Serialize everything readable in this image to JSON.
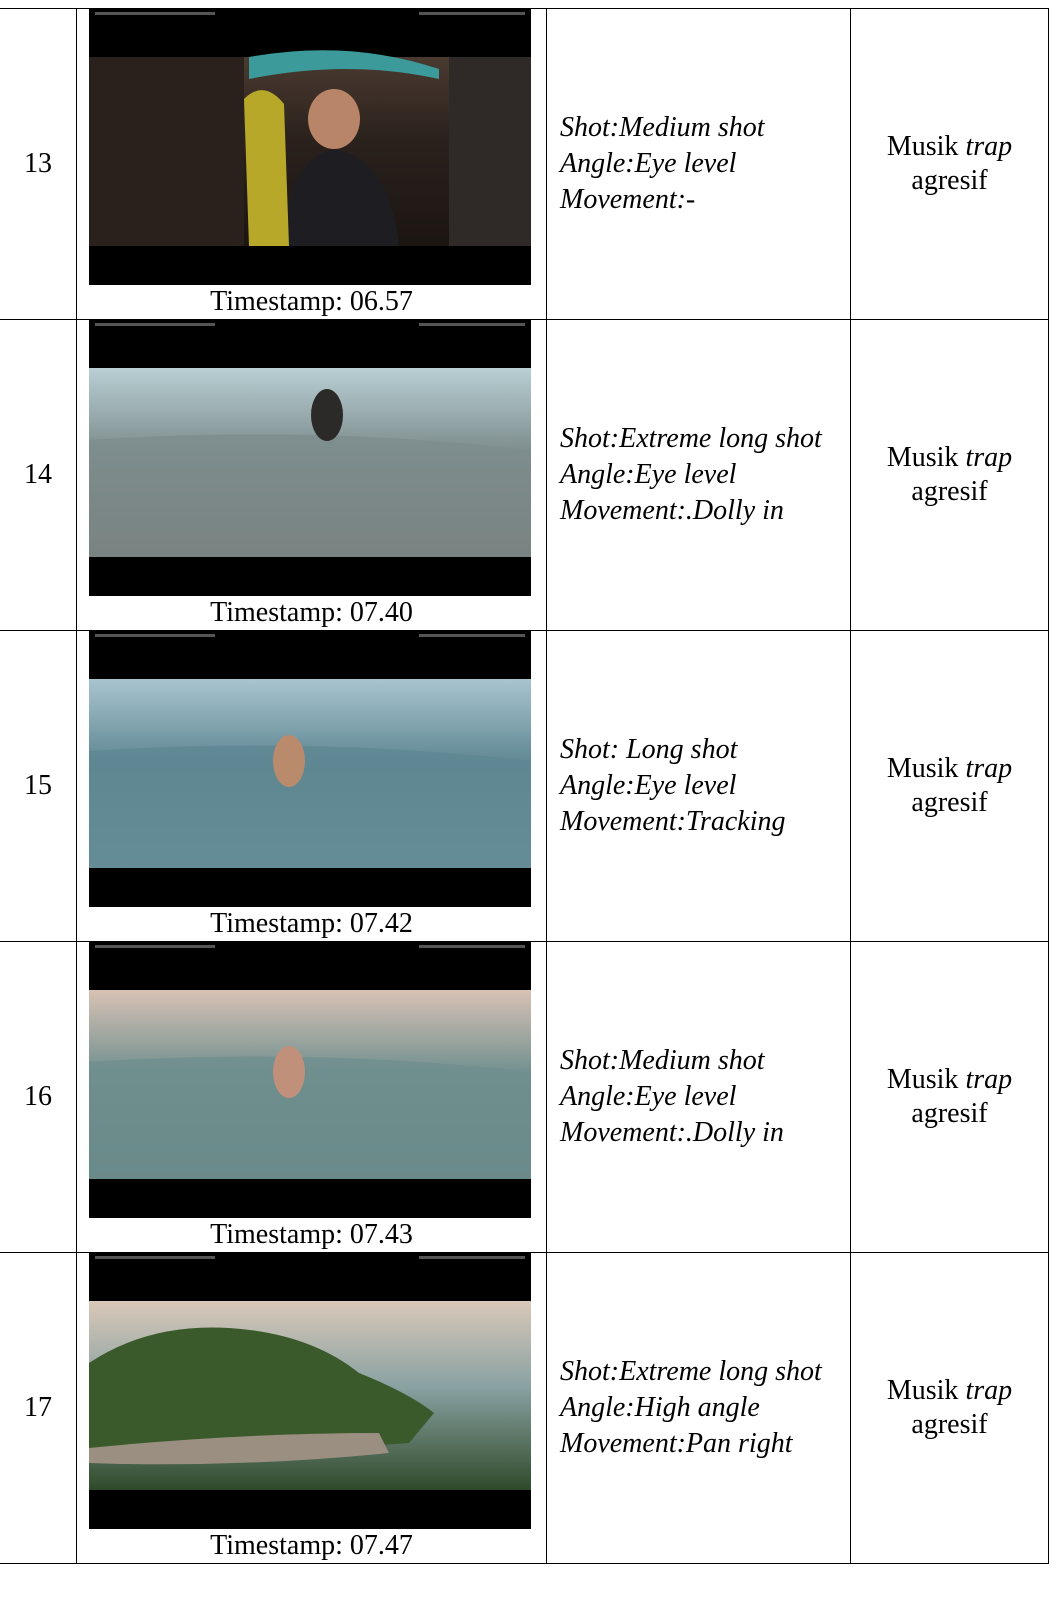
{
  "table": {
    "rows": [
      {
        "number": "13",
        "timestamp": "Timestamp: 06.57",
        "description": [
          "Shot:Medium shot",
          "Angle:Eye level",
          "Movement:-"
        ],
        "music": [
          "Musik",
          "trap",
          "agresif"
        ]
      },
      {
        "number": "14",
        "timestamp": "Timestamp: 07.40",
        "description": [
          "Shot:Extreme long shot",
          "Angle:Eye level",
          "Movement:.Dolly in"
        ],
        "music": [
          "Musik",
          "trap",
          "agresif"
        ]
      },
      {
        "number": "15",
        "timestamp": "Timestamp: 07.42",
        "description": [
          "Shot: Long shot",
          "Angle:Eye level",
          "Movement:Tracking"
        ],
        "music": [
          "Musik",
          "trap",
          "agresif"
        ]
      },
      {
        "number": "16",
        "timestamp": "Timestamp: 07.43",
        "description": [
          "Shot:Medium shot",
          "Angle:Eye level",
          "Movement:.Dolly in"
        ],
        "music": [
          "Musik",
          "trap",
          "agresif"
        ]
      },
      {
        "number": "17",
        "timestamp": "Timestamp: 07.47",
        "description": [
          "Shot:Extreme long shot",
          "Angle:High angle",
          "Movement:Pan right"
        ],
        "music": [
          "Musik",
          "trap",
          "agresif"
        ]
      }
    ]
  }
}
